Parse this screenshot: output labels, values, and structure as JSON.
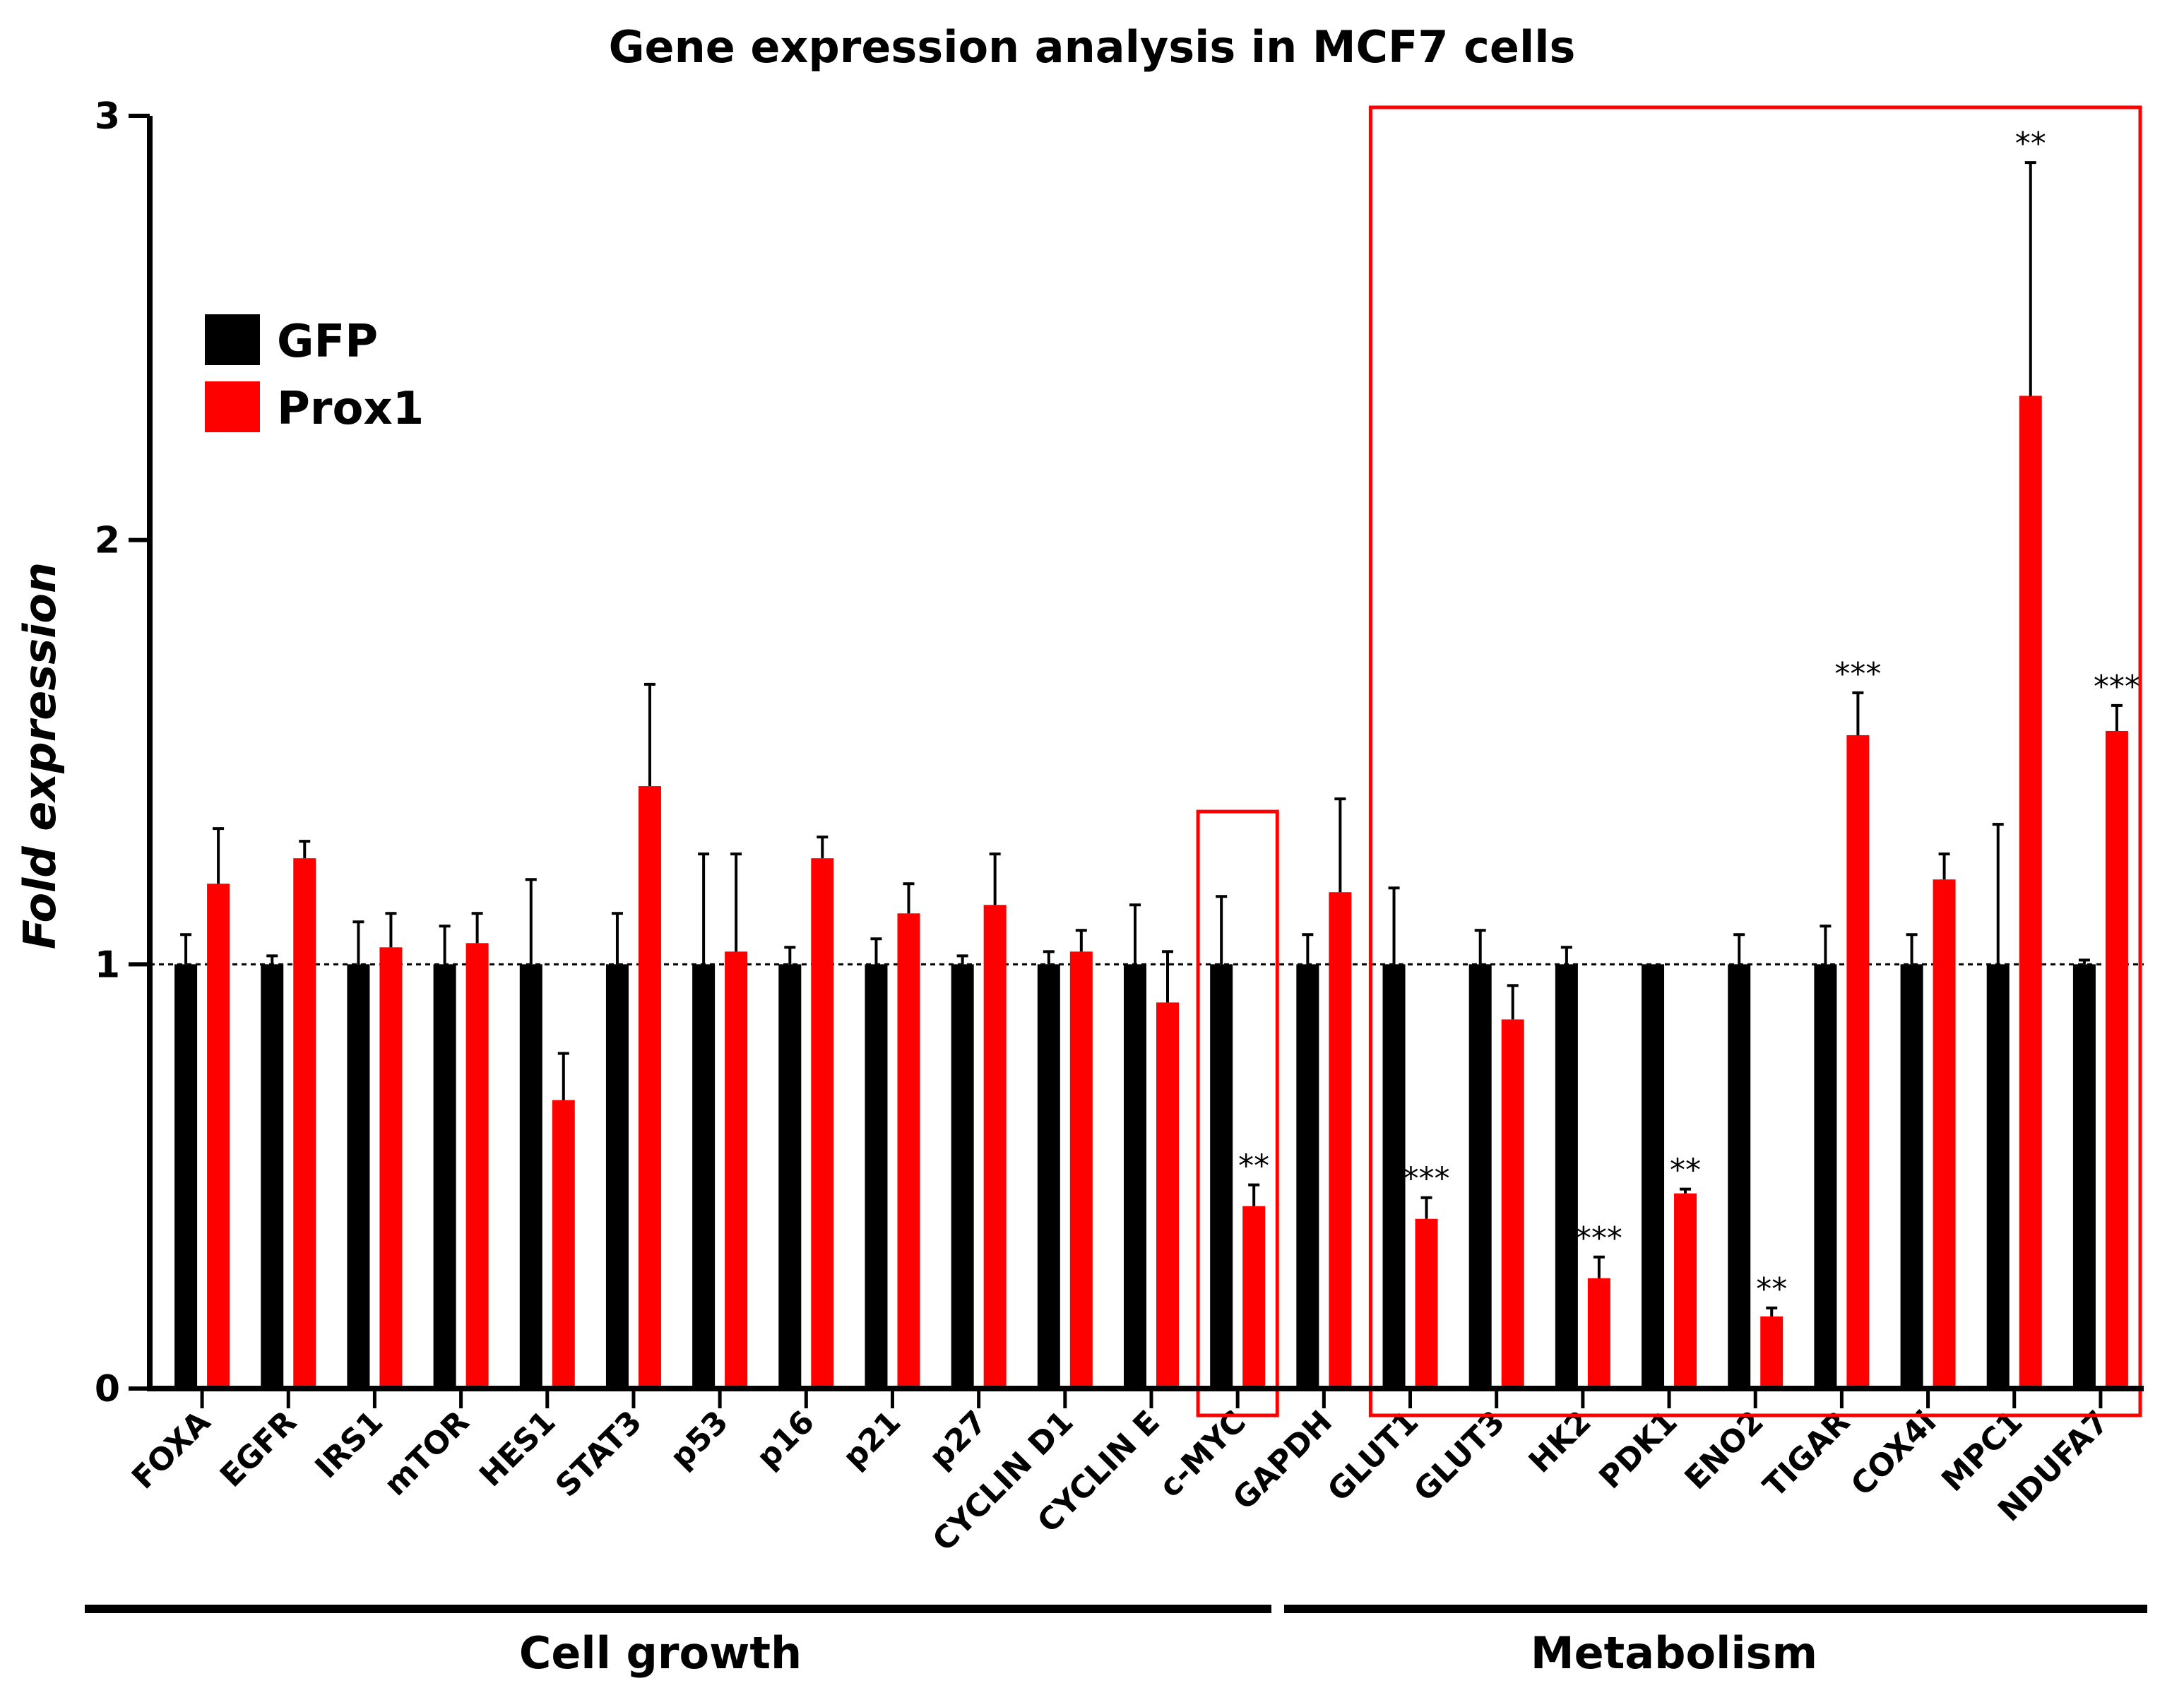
{
  "chart_data": {
    "type": "bar",
    "title": "Gene expression analysis in MCF7 cells",
    "xlabel": "",
    "ylabel": "Fold expression",
    "ylim": [
      0,
      3
    ],
    "yticks": [
      "0",
      "1",
      "2",
      "3"
    ],
    "reference_line": 1,
    "categories": [
      "FOXA",
      "EGFR",
      "IRS1",
      "mTOR",
      "HES1",
      "STAT3",
      "p53",
      "p16",
      "p21",
      "p27",
      "CYCLIN D1",
      "CYCLIN E",
      "c-MYC",
      "GAPDH",
      "GLUT1",
      "GLUT3",
      "HK2",
      "PDK1",
      "ENO2",
      "TIGAR",
      "COX4i",
      "MPC1",
      "NDUFA7"
    ],
    "series": [
      {
        "name": "GFP",
        "color": "#000000",
        "values": [
          1,
          1,
          1,
          1,
          1,
          1,
          1,
          1,
          1,
          1,
          1,
          1,
          1,
          1,
          1,
          1,
          1,
          1,
          1,
          1,
          1,
          1,
          1
        ],
        "errors": [
          0.07,
          0.02,
          0.1,
          0.09,
          0.2,
          0.12,
          0.26,
          0.04,
          0.06,
          0.02,
          0.03,
          0.14,
          0.16,
          0.07,
          0.18,
          0.08,
          0.04,
          0.0,
          0.07,
          0.09,
          0.07,
          0.33,
          0.01
        ]
      },
      {
        "name": "Prox1",
        "color": "#ff0000",
        "values": [
          1.19,
          1.25,
          1.04,
          1.05,
          0.68,
          1.42,
          1.03,
          1.25,
          1.12,
          1.14,
          1.03,
          0.91,
          0.43,
          1.17,
          0.4,
          0.87,
          0.26,
          0.46,
          0.17,
          1.54,
          1.2,
          2.34,
          1.55
        ],
        "errors": [
          0.13,
          0.04,
          0.08,
          0.07,
          0.11,
          0.24,
          0.23,
          0.05,
          0.07,
          0.12,
          0.05,
          0.12,
          0.05,
          0.22,
          0.05,
          0.08,
          0.05,
          0.01,
          0.02,
          0.1,
          0.06,
          0.55,
          0.06
        ]
      }
    ],
    "significance": [
      {
        "category": "c-MYC",
        "label": "**"
      },
      {
        "category": "GLUT1",
        "label": "***"
      },
      {
        "category": "HK2",
        "label": "***"
      },
      {
        "category": "PDK1",
        "label": "**"
      },
      {
        "category": "ENO2",
        "label": "**"
      },
      {
        "category": "TIGAR",
        "label": "***"
      },
      {
        "category": "MPC1",
        "label": "**"
      },
      {
        "category": "NDUFA7",
        "label": "***"
      }
    ],
    "legend": {
      "position": "top-left",
      "entries": [
        "GFP",
        "Prox1"
      ]
    },
    "groups": [
      {
        "label": "Cell growth",
        "from": "FOXA",
        "to": "c-MYC"
      },
      {
        "label": "Metabolism",
        "from": "GAPDH",
        "to": "NDUFA7"
      }
    ],
    "highlight_boxes": [
      {
        "from": "c-MYC",
        "to": "c-MYC",
        "color": "#ff0000"
      },
      {
        "from": "GLUT1",
        "to": "NDUFA7",
        "color": "#ff0000"
      }
    ]
  }
}
